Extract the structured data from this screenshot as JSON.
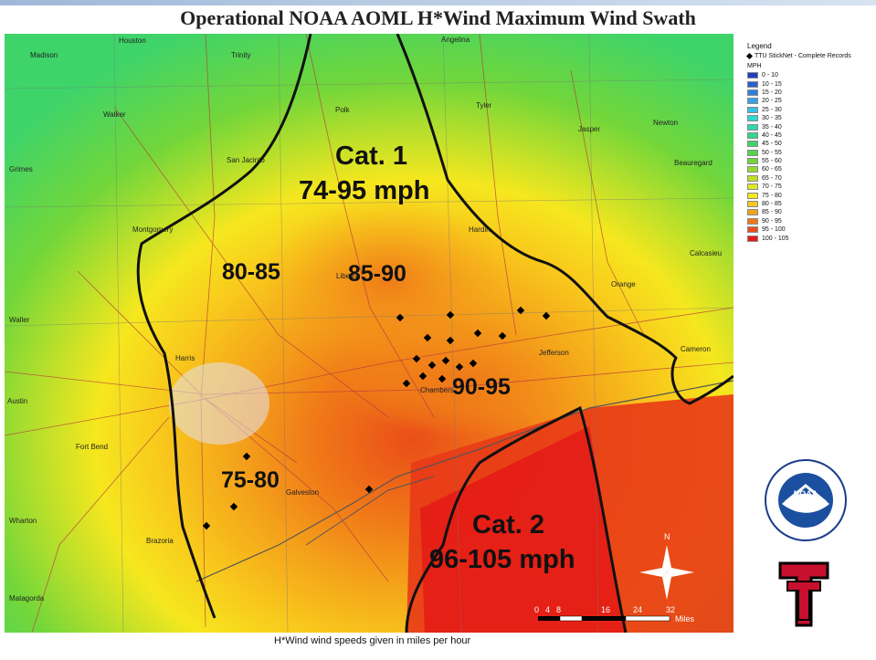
{
  "title": "Operational NOAA AOML H*Wind Maximum Wind Swath",
  "caption": "H*Wind wind speeds given in miles per hour",
  "legend": {
    "title": "Legend",
    "ttu_label": "TTU StickNet - Complete Records",
    "units": "MPH",
    "bins": [
      {
        "label": "0 - 10",
        "color": "#1f3fbf"
      },
      {
        "label": "10 - 15",
        "color": "#2a5fd0"
      },
      {
        "label": "15 - 20",
        "color": "#2f7fe0"
      },
      {
        "label": "20 - 25",
        "color": "#3aa0e8"
      },
      {
        "label": "25 - 30",
        "color": "#35c0e6"
      },
      {
        "label": "30 - 35",
        "color": "#2fd6d2"
      },
      {
        "label": "35 - 40",
        "color": "#2ed8b0"
      },
      {
        "label": "40 - 45",
        "color": "#33d68e"
      },
      {
        "label": "45 - 50",
        "color": "#3ed46a"
      },
      {
        "label": "50 - 55",
        "color": "#52d44a"
      },
      {
        "label": "55 - 60",
        "color": "#72d63a"
      },
      {
        "label": "60 - 65",
        "color": "#96da30"
      },
      {
        "label": "65 - 70",
        "color": "#bce02a"
      },
      {
        "label": "70 - 75",
        "color": "#e0e824"
      },
      {
        "label": "75 - 80",
        "color": "#f6e71e"
      },
      {
        "label": "80 - 85",
        "color": "#f8c81c"
      },
      {
        "label": "85 - 90",
        "color": "#f4a21a"
      },
      {
        "label": "90 - 95",
        "color": "#f07818"
      },
      {
        "label": "95 - 100",
        "color": "#ea4e18"
      },
      {
        "label": "100 - 105",
        "color": "#e41a16"
      }
    ]
  },
  "map": {
    "zones": {
      "cat1": "Cat. 1",
      "cat1_range": "74-95 mph",
      "cat2": "Cat. 2",
      "cat2_range": "96-105 mph",
      "b8085": "80-85",
      "b8590": "85-90",
      "b9095": "90-95",
      "b7580": "75-80"
    },
    "places": [
      "Houston",
      "Trinity",
      "Angelina",
      "Madison",
      "Polk",
      "Tyler",
      "Walker",
      "Jasper",
      "Newton",
      "Grimes",
      "San Jacinto",
      "Beauregard",
      "Montgomery",
      "Hardin",
      "Calcasieu",
      "Liberty",
      "Orange",
      "Waller",
      "Jefferson",
      "Cameron",
      "Harris",
      "Chambers",
      "Austin",
      "Fort Bend",
      "Galveston",
      "Wharton",
      "Brazoria",
      "Matagorda"
    ],
    "scale": {
      "ticks": [
        "0",
        "4",
        "8",
        "16",
        "24",
        "32"
      ],
      "unit": "Miles"
    },
    "north": "N"
  },
  "logos": {
    "noaa": "NOAA"
  }
}
